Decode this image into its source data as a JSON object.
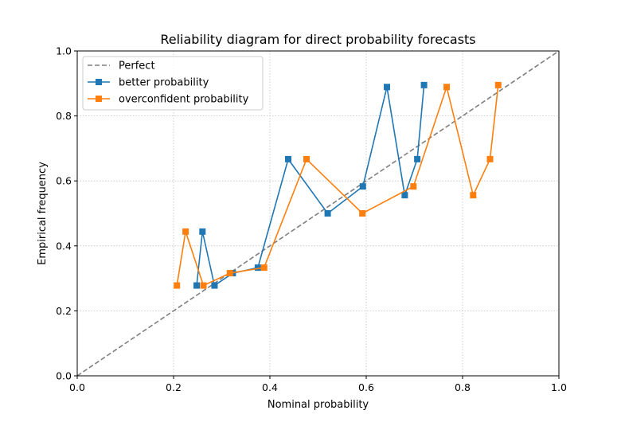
{
  "chart_data": {
    "type": "line",
    "title": "Reliability diagram for direct probability forecasts",
    "xlabel": "Nominal probability",
    "ylabel": "Empirical frequency",
    "xlim": [
      0.0,
      1.0
    ],
    "ylim": [
      0.0,
      1.0
    ],
    "xticks": [
      "0.0",
      "0.2",
      "0.4",
      "0.6",
      "0.8",
      "1.0"
    ],
    "yticks": [
      "0.0",
      "0.2",
      "0.4",
      "0.6",
      "0.8",
      "1.0"
    ],
    "grid": true,
    "legend_position": "top-left",
    "series": [
      {
        "name": "Perfect",
        "style": "dashed",
        "color": "#7f7f7f",
        "marker": "none",
        "x": [
          0.0,
          1.0
        ],
        "y": [
          0.0,
          1.0
        ]
      },
      {
        "name": "better probability",
        "style": "solid",
        "color": "#1f77b4",
        "marker": "square",
        "x": [
          0.248,
          0.26,
          0.285,
          0.323,
          0.375,
          0.438,
          0.52,
          0.593,
          0.643,
          0.68,
          0.706,
          0.72
        ],
        "y": [
          0.278,
          0.444,
          0.278,
          0.316,
          0.333,
          0.667,
          0.5,
          0.583,
          0.889,
          0.556,
          0.667,
          0.895
        ]
      },
      {
        "name": "overconfident probability",
        "style": "solid",
        "color": "#ff7f0e",
        "marker": "square",
        "x": [
          0.207,
          0.225,
          0.262,
          0.317,
          0.388,
          0.476,
          0.592,
          0.698,
          0.767,
          0.822,
          0.857,
          0.874
        ],
        "y": [
          0.278,
          0.444,
          0.278,
          0.316,
          0.333,
          0.667,
          0.5,
          0.583,
          0.889,
          0.556,
          0.667,
          0.895
        ]
      }
    ]
  }
}
